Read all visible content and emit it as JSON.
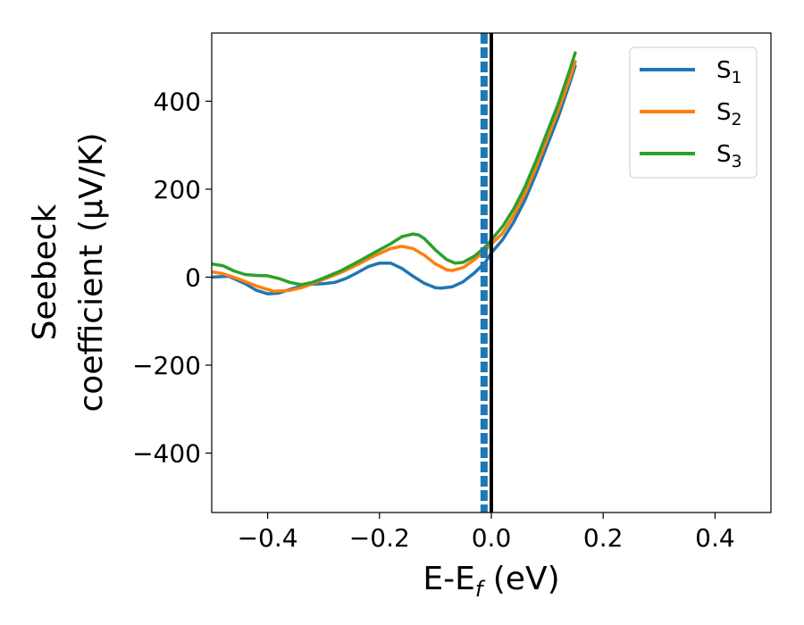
{
  "chart_data": {
    "type": "line",
    "title": "",
    "xlabel": {
      "base": "E-E",
      "sub": "f",
      "tail": " (eV)"
    },
    "ylabel": {
      "line1": "Seebeck",
      "line2": "coefficient",
      "unit": "(μV/K)"
    },
    "xlim": [
      -0.5,
      0.5
    ],
    "ylim": [
      -535,
      555
    ],
    "xticks": [
      -0.4,
      -0.2,
      0.0,
      0.2,
      0.4
    ],
    "xtick_labels": [
      "−0.4",
      "−0.2",
      "0.0",
      "0.2",
      "0.4"
    ],
    "yticks": [
      -400,
      -200,
      0,
      200,
      400
    ],
    "ytick_labels": [
      "−400",
      "−200",
      "0",
      "200",
      "400"
    ],
    "grid": false,
    "legend_position": "top-right",
    "vlines": [
      {
        "x": 0.0,
        "color": "#000000",
        "style": "solid"
      },
      {
        "x": -0.013,
        "color": "#1f77b4",
        "style": "dashed"
      }
    ],
    "series": [
      {
        "name": "S",
        "sub": "1",
        "color": "#1f77b4",
        "points": [
          [
            -0.5,
            0
          ],
          [
            -0.47,
            2
          ],
          [
            -0.44,
            -15
          ],
          [
            -0.42,
            -30
          ],
          [
            -0.4,
            -38
          ],
          [
            -0.38,
            -36
          ],
          [
            -0.36,
            -28
          ],
          [
            -0.34,
            -20
          ],
          [
            -0.32,
            -16
          ],
          [
            -0.3,
            -15
          ],
          [
            -0.28,
            -12
          ],
          [
            -0.26,
            -3
          ],
          [
            -0.24,
            10
          ],
          [
            -0.22,
            24
          ],
          [
            -0.2,
            32
          ],
          [
            -0.18,
            32
          ],
          [
            -0.16,
            20
          ],
          [
            -0.14,
            2
          ],
          [
            -0.12,
            -14
          ],
          [
            -0.1,
            -24
          ],
          [
            -0.09,
            -25
          ],
          [
            -0.07,
            -22
          ],
          [
            -0.05,
            -10
          ],
          [
            -0.03,
            10
          ],
          [
            -0.01,
            35
          ],
          [
            0.0,
            55
          ],
          [
            0.02,
            85
          ],
          [
            0.04,
            125
          ],
          [
            0.06,
            175
          ],
          [
            0.08,
            235
          ],
          [
            0.1,
            300
          ],
          [
            0.12,
            365
          ],
          [
            0.14,
            440
          ],
          [
            0.15,
            480
          ]
        ]
      },
      {
        "name": "S",
        "sub": "2",
        "color": "#ff7f0e",
        "points": [
          [
            -0.5,
            12
          ],
          [
            -0.48,
            8
          ],
          [
            -0.45,
            -5
          ],
          [
            -0.42,
            -20
          ],
          [
            -0.39,
            -32
          ],
          [
            -0.36,
            -30
          ],
          [
            -0.34,
            -24
          ],
          [
            -0.32,
            -15
          ],
          [
            -0.3,
            -5
          ],
          [
            -0.27,
            10
          ],
          [
            -0.24,
            28
          ],
          [
            -0.21,
            48
          ],
          [
            -0.18,
            65
          ],
          [
            -0.16,
            70
          ],
          [
            -0.14,
            65
          ],
          [
            -0.12,
            50
          ],
          [
            -0.1,
            30
          ],
          [
            -0.08,
            17
          ],
          [
            -0.07,
            15
          ],
          [
            -0.05,
            22
          ],
          [
            -0.03,
            40
          ],
          [
            -0.01,
            62
          ],
          [
            0.0,
            75
          ],
          [
            0.02,
            100
          ],
          [
            0.04,
            140
          ],
          [
            0.06,
            190
          ],
          [
            0.08,
            250
          ],
          [
            0.1,
            315
          ],
          [
            0.12,
            380
          ],
          [
            0.14,
            450
          ],
          [
            0.15,
            490
          ]
        ]
      },
      {
        "name": "S",
        "sub": "3",
        "color": "#2ca02c",
        "points": [
          [
            -0.5,
            30
          ],
          [
            -0.48,
            26
          ],
          [
            -0.46,
            14
          ],
          [
            -0.44,
            6
          ],
          [
            -0.42,
            4
          ],
          [
            -0.4,
            3
          ],
          [
            -0.38,
            -3
          ],
          [
            -0.36,
            -12
          ],
          [
            -0.34,
            -17
          ],
          [
            -0.32,
            -12
          ],
          [
            -0.3,
            -2
          ],
          [
            -0.27,
            14
          ],
          [
            -0.24,
            34
          ],
          [
            -0.21,
            55
          ],
          [
            -0.18,
            76
          ],
          [
            -0.16,
            92
          ],
          [
            -0.14,
            98
          ],
          [
            -0.13,
            96
          ],
          [
            -0.12,
            88
          ],
          [
            -0.1,
            62
          ],
          [
            -0.08,
            40
          ],
          [
            -0.065,
            32
          ],
          [
            -0.05,
            34
          ],
          [
            -0.03,
            48
          ],
          [
            -0.01,
            70
          ],
          [
            0.0,
            85
          ],
          [
            0.02,
            115
          ],
          [
            0.04,
            155
          ],
          [
            0.06,
            205
          ],
          [
            0.08,
            265
          ],
          [
            0.1,
            330
          ],
          [
            0.12,
            395
          ],
          [
            0.14,
            470
          ],
          [
            0.15,
            510
          ]
        ]
      }
    ]
  }
}
